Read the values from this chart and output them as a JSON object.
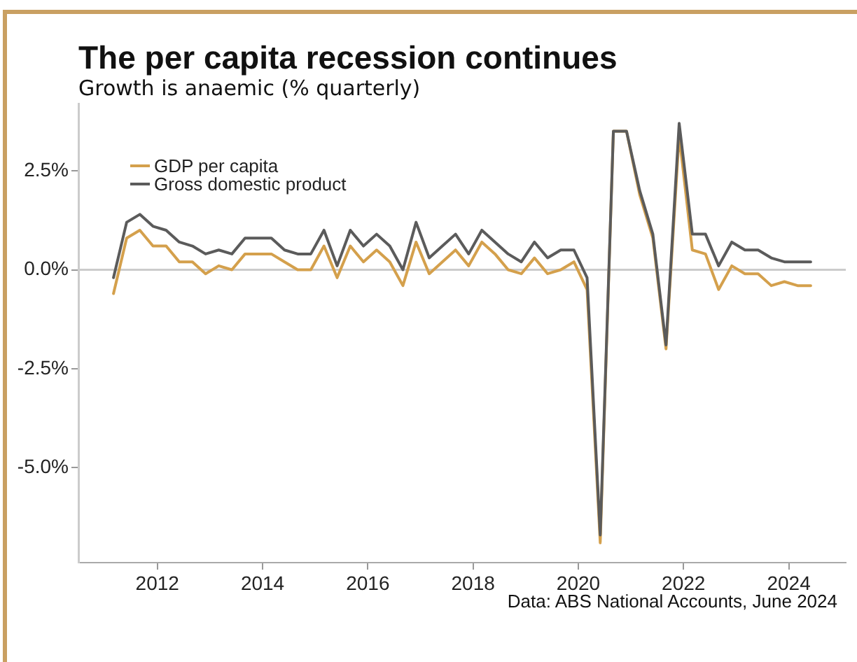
{
  "chart_data": {
    "type": "line",
    "title": "The per capita recession continues",
    "subtitle": "Growth is anaemic (% quarterly)",
    "annotations": [
      "Data: ABS National Accounts, June 2024"
    ],
    "x": [
      "2011-03",
      "2011-06",
      "2011-09",
      "2011-12",
      "2012-03",
      "2012-06",
      "2012-09",
      "2012-12",
      "2013-03",
      "2013-06",
      "2013-09",
      "2013-12",
      "2014-03",
      "2014-06",
      "2014-09",
      "2014-12",
      "2015-03",
      "2015-06",
      "2015-09",
      "2015-12",
      "2016-03",
      "2016-06",
      "2016-09",
      "2016-12",
      "2017-03",
      "2017-06",
      "2017-09",
      "2017-12",
      "2018-03",
      "2018-06",
      "2018-09",
      "2018-12",
      "2019-03",
      "2019-06",
      "2019-09",
      "2019-12",
      "2020-03",
      "2020-06",
      "2020-09",
      "2020-12",
      "2021-03",
      "2021-06",
      "2021-09",
      "2021-12",
      "2022-03",
      "2022-06",
      "2022-09",
      "2022-12",
      "2023-03",
      "2023-06",
      "2023-09",
      "2023-12",
      "2024-03",
      "2024-06"
    ],
    "series": [
      {
        "name": "GDP per capita",
        "color": "#d4a04c",
        "values": [
          -0.6,
          0.8,
          1.0,
          0.6,
          0.6,
          0.2,
          0.2,
          -0.1,
          0.1,
          0.0,
          0.4,
          0.4,
          0.4,
          0.2,
          0.0,
          0.0,
          0.6,
          -0.2,
          0.6,
          0.2,
          0.5,
          0.2,
          -0.4,
          0.7,
          -0.1,
          0.2,
          0.5,
          0.1,
          0.7,
          0.4,
          0.0,
          -0.1,
          0.3,
          -0.1,
          0.0,
          0.2,
          -0.5,
          -6.9,
          3.5,
          3.5,
          1.9,
          0.8,
          -2.0,
          3.4,
          0.5,
          0.4,
          -0.5,
          0.1,
          -0.1,
          -0.1,
          -0.4,
          -0.3,
          -0.4,
          -0.4
        ]
      },
      {
        "name": "Gross domestic product",
        "color": "#5b5b5b",
        "values": [
          -0.2,
          1.2,
          1.4,
          1.1,
          1.0,
          0.7,
          0.6,
          0.4,
          0.5,
          0.4,
          0.8,
          0.8,
          0.8,
          0.5,
          0.4,
          0.4,
          1.0,
          0.1,
          1.0,
          0.6,
          0.9,
          0.6,
          0.0,
          1.2,
          0.3,
          0.6,
          0.9,
          0.4,
          1.0,
          0.7,
          0.4,
          0.2,
          0.7,
          0.3,
          0.5,
          0.5,
          -0.2,
          -6.7,
          3.5,
          3.5,
          2.0,
          0.9,
          -1.9,
          3.7,
          0.9,
          0.9,
          0.1,
          0.7,
          0.5,
          0.5,
          0.3,
          0.2,
          0.2,
          0.2
        ]
      }
    ],
    "xlim": [
      "2010-07",
      "2025-02"
    ],
    "xticks": [
      "2012",
      "2014",
      "2016",
      "2018",
      "2020",
      "2022",
      "2024"
    ],
    "ylim": [
      -7.4,
      4.2
    ],
    "yticks": [
      {
        "value": -5,
        "label": "-5.0%"
      },
      {
        "value": -2.5,
        "label": "-2.5%"
      },
      {
        "value": 0,
        "label": "0.0%"
      },
      {
        "value": 2.5,
        "label": "2.5%"
      }
    ],
    "ref_lines": [
      {
        "axis": "y",
        "value": 0,
        "color": "#cccccc"
      }
    ],
    "grid": false,
    "legend": "top left",
    "marker": "none",
    "line_style": "solid"
  }
}
